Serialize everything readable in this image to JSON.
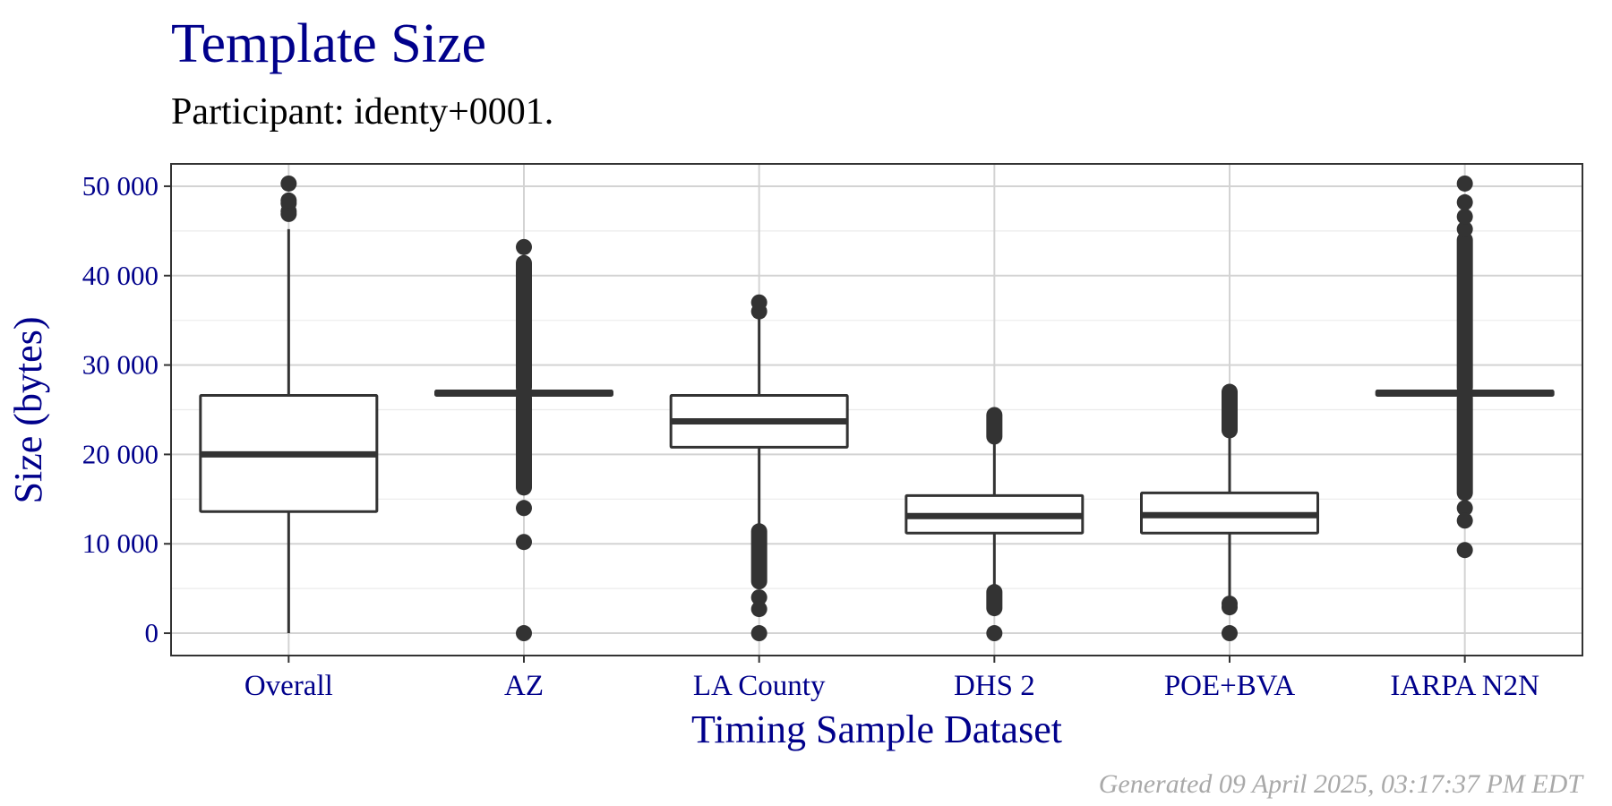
{
  "header": {
    "title": "Template Size",
    "subtitle": "Participant: identy+0001."
  },
  "footer": {
    "caption": "Generated 09 April 2025, 03:17:37 PM EDT"
  },
  "chart_data": {
    "type": "box",
    "title": "Template Size",
    "subtitle": "Participant: identy+0001.",
    "xlabel": "Timing Sample Dataset",
    "ylabel": "Size (bytes)",
    "ylim": [
      -2500,
      52500
    ],
    "y_ticks": [
      0,
      10000,
      20000,
      30000,
      40000,
      50000
    ],
    "y_tick_labels": [
      "0",
      "10 000",
      "20 000",
      "30 000",
      "40 000",
      "50 000"
    ],
    "grid": true,
    "legend": "none",
    "colors": {
      "box_stroke": "#333333",
      "box_fill": "#ffffff",
      "grid_major": "#d3d3d3",
      "grid_minor": "#ebebeb",
      "axis_text": "#00008b"
    },
    "categories": [
      "Overall",
      "AZ",
      "LA County",
      "DHS 2",
      "POE+BVA",
      "IARPA N2N"
    ],
    "boxes": [
      {
        "label": "Overall",
        "q1": 13600,
        "median": 20000,
        "q3": 26600,
        "whisker_low": 0,
        "whisker_high": 45200,
        "outliers": [
          46900,
          47200,
          48100,
          48400,
          50300
        ]
      },
      {
        "label": "AZ",
        "q1": 26600,
        "median": 26900,
        "q3": 27100,
        "whisker_low": 26500,
        "whisker_high": 27300,
        "outliers_range": [
          [
            16300,
            26300
          ],
          [
            27500,
            41400
          ]
        ],
        "outliers": [
          43200,
          14000,
          10200,
          0
        ]
      },
      {
        "label": "LA County",
        "q1": 20800,
        "median": 23700,
        "q3": 26600,
        "whisker_low": 11700,
        "whisker_high": 35800,
        "outliers_range": [
          [
            5800,
            11400
          ]
        ],
        "outliers": [
          36000,
          37000,
          4000,
          2700,
          0
        ]
      },
      {
        "label": "DHS 2",
        "q1": 11200,
        "median": 13100,
        "q3": 15400,
        "whisker_low": 4800,
        "whisker_high": 21800,
        "outliers_range": [
          [
            22000,
            24400
          ],
          [
            2800,
            4600
          ]
        ],
        "outliers": [
          0
        ]
      },
      {
        "label": "POE+BVA",
        "q1": 11200,
        "median": 13200,
        "q3": 15700,
        "whisker_low": 3600,
        "whisker_high": 22500,
        "outliers_range": [
          [
            22700,
            27000
          ]
        ],
        "outliers": [
          2900,
          3300,
          0
        ]
      },
      {
        "label": "IARPA N2N",
        "q1": 26600,
        "median": 26900,
        "q3": 27100,
        "whisker_low": 26500,
        "whisker_high": 27300,
        "outliers_range": [
          [
            15700,
            26300
          ],
          [
            27500,
            44000
          ]
        ],
        "outliers": [
          45200,
          46600,
          48200,
          50300,
          14000,
          12600,
          9300
        ]
      }
    ]
  }
}
